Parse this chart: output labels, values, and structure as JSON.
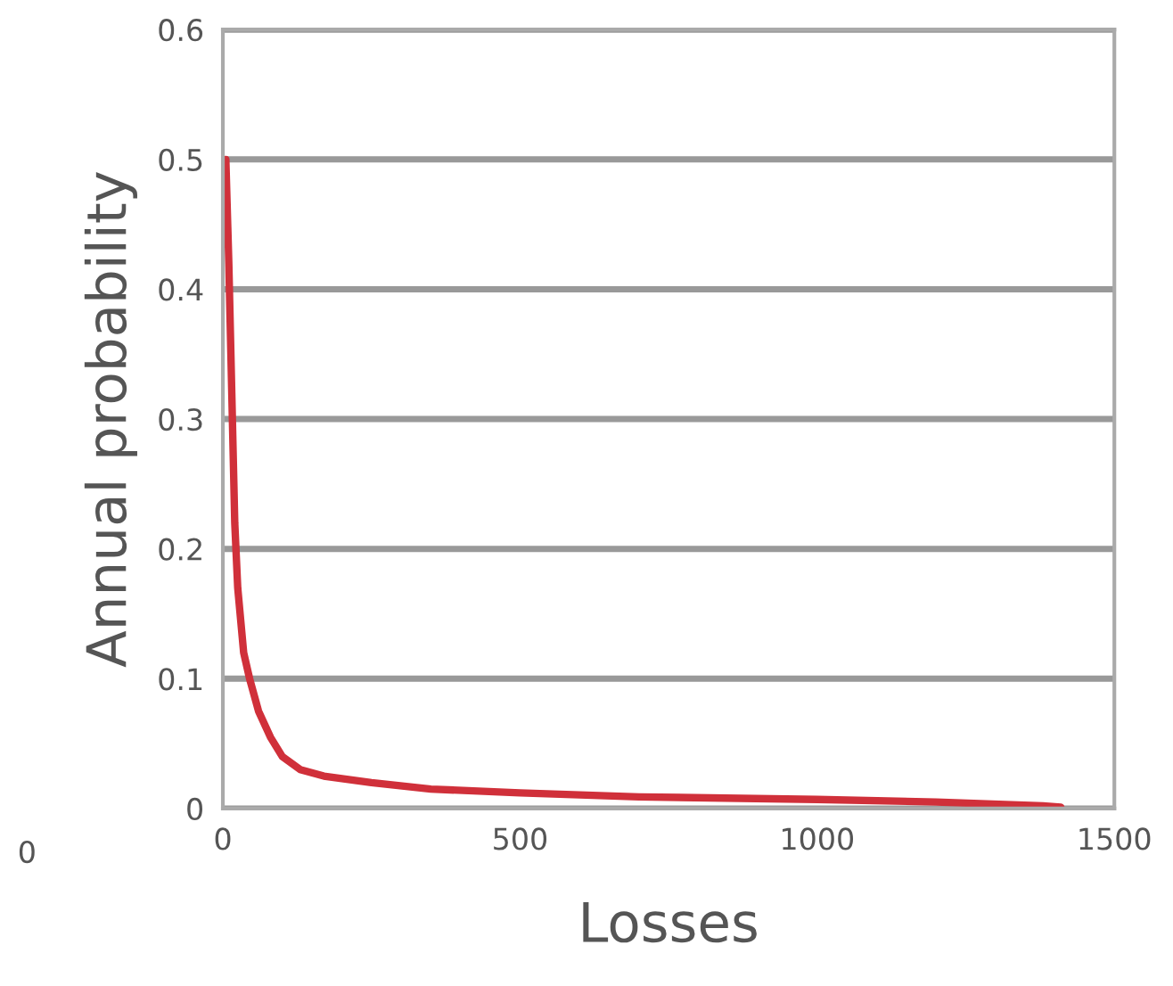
{
  "chart_data": {
    "type": "line",
    "xlabel": "Losses",
    "ylabel": "Annual probability",
    "x": [
      5,
      10,
      15,
      20,
      25,
      35,
      45,
      60,
      80,
      100,
      130,
      170,
      250,
      350,
      500,
      700,
      1000,
      1200,
      1380,
      1410
    ],
    "series": [
      {
        "color": "#d0303a",
        "values": [
          0.5,
          0.42,
          0.32,
          0.22,
          0.17,
          0.12,
          0.1,
          0.075,
          0.055,
          0.04,
          0.03,
          0.025,
          0.02,
          0.015,
          0.012,
          0.009,
          0.007,
          0.005,
          0.002,
          0.001
        ]
      }
    ],
    "xlim": [
      0,
      1500
    ],
    "xticks": [
      0,
      500,
      1000,
      1500
    ],
    "ylim": [
      0,
      0.6
    ],
    "yticks": [
      {
        "value": 0,
        "label": "0"
      },
      0.1,
      0.2,
      0.3,
      0.4,
      0.5,
      0.6
    ],
    "grid": "y",
    "annotations": [
      "0"
    ]
  }
}
